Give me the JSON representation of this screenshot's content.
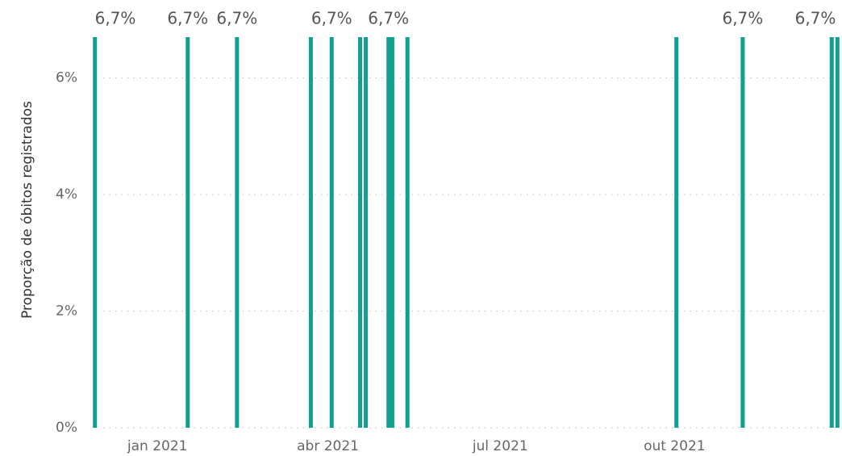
{
  "chart_data": {
    "type": "bar",
    "y_label": "Proporção de óbitos registrados",
    "x": [
      "2020-11-29",
      "2021-01-17",
      "2021-02-12",
      "2021-03-23",
      "2021-04-03",
      "2021-04-18",
      "2021-04-21",
      "2021-05-03",
      "2021-05-05",
      "2021-05-13",
      "2021-10-02",
      "2021-11-06",
      "2021-12-23",
      "2021-12-26"
    ],
    "values": [
      6.7,
      6.7,
      6.7,
      6.7,
      6.7,
      6.7,
      6.7,
      6.7,
      6.7,
      6.7,
      6.7,
      6.7,
      6.7,
      6.7
    ],
    "value_labels": [
      "6,7%",
      "6,7%",
      "6,7%",
      null,
      "6,7%",
      null,
      null,
      "6,7%",
      null,
      null,
      null,
      "6,7%",
      "6,7%",
      null
    ],
    "color": "#119f8f",
    "xlim": [
      "2020-11-27",
      "2021-12-28"
    ],
    "xticks": [
      {
        "value": "2021-01-01",
        "label": "jan 2021"
      },
      {
        "value": "2021-04-01",
        "label": "abr 2021"
      },
      {
        "value": "2021-07-01",
        "label": "jul 2021"
      },
      {
        "value": "2021-10-01",
        "label": "out 2021"
      }
    ],
    "ylim": [
      0,
      6.7
    ],
    "yticks": [
      {
        "value": 0,
        "label": "0%"
      },
      {
        "value": 2,
        "label": "2%"
      },
      {
        "value": 4,
        "label": "4%"
      },
      {
        "value": 6,
        "label": "6%"
      }
    ],
    "grid": true
  }
}
